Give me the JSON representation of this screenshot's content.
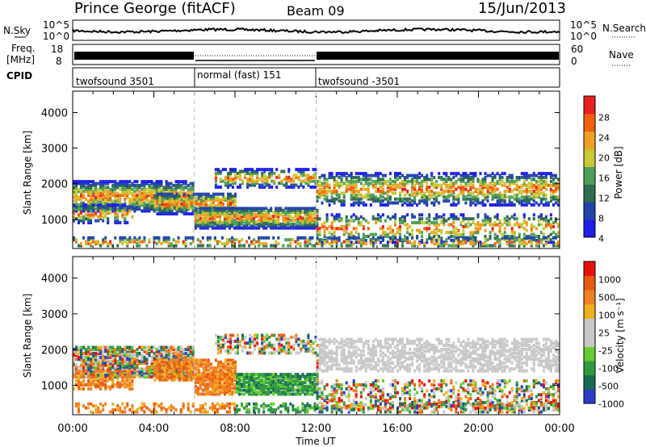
{
  "header": {
    "station": "Prince George (fitACF)",
    "beam": "Beam 09",
    "date": "15/Jun/2013"
  },
  "noise_panel": {
    "left_label": "N.Sky",
    "right_label": "N.Search",
    "ticks": [
      "10^5",
      "10^0"
    ]
  },
  "freq_panel": {
    "left_label_1": "Freq.",
    "left_label_2": "[MHz]",
    "left_ticks": [
      "18",
      "8"
    ],
    "right_label": "Nave",
    "right_ticks": [
      "60",
      "0"
    ]
  },
  "cpid_panel": {
    "label": "CPID",
    "segments": [
      {
        "name": "twofsound 3501",
        "start_hour": 0,
        "end_hour": 6
      },
      {
        "name": "normal (fast) 151",
        "start_hour": 6,
        "end_hour": 12
      },
      {
        "name": "twofsound -3501",
        "start_hour": 12,
        "end_hour": 24
      }
    ]
  },
  "colors": {
    "power_scale": [
      "#1e1ee6",
      "#2244aa",
      "#2f6b4f",
      "#4f9f5a",
      "#c8c832",
      "#f0a020",
      "#f06010",
      "#e82020"
    ],
    "velocity_scale": [
      "#2c3cc8",
      "#1a6a55",
      "#2f9a3f",
      "#66cc33",
      "#c8c8c8",
      "#c8c8c8",
      "#f0b020",
      "#f08020",
      "#e85a10",
      "#e81010"
    ]
  },
  "chart_data": [
    {
      "type": "heatmap",
      "title": "",
      "quantity": "Power",
      "ylabel": "Slant Range [km]",
      "colorbar_label": "Power [dB]",
      "colorbar_ticks": [
        "28",
        "24",
        "20",
        "16",
        "12",
        "8",
        "4"
      ],
      "x_range_hours": [
        0,
        24
      ],
      "ylim": [
        180,
        4600
      ],
      "y_ticks": [
        "4000",
        "3000",
        "2000",
        "1000"
      ],
      "y_tick_values": [
        4000,
        3000,
        2000,
        1000
      ],
      "x_ticks": [
        "00:00",
        "04:00",
        "08:00",
        "12:00",
        "16:00",
        "20:00",
        "00:00"
      ],
      "mode_boundaries_hours": [
        6,
        12
      ]
    },
    {
      "type": "heatmap",
      "title": "",
      "quantity": "Velocity",
      "ylabel": "Slant Range [km]",
      "colorbar_label": "Velocity [m s⁻¹]",
      "colorbar_ticks": [
        "1000",
        "500",
        "100",
        "25",
        "-25",
        "-100",
        "-500",
        "-1000"
      ],
      "x_range_hours": [
        0,
        24
      ],
      "ylim": [
        180,
        4600
      ],
      "y_ticks": [
        "4000",
        "3000",
        "2000",
        "1000"
      ],
      "y_tick_values": [
        4000,
        3000,
        2000,
        1000
      ],
      "x_ticks": [
        "00:00",
        "04:00",
        "08:00",
        "12:00",
        "16:00",
        "20:00",
        "00:00"
      ],
      "xlabel": "Time UT",
      "mode_boundaries_hours": [
        6,
        12
      ]
    }
  ]
}
